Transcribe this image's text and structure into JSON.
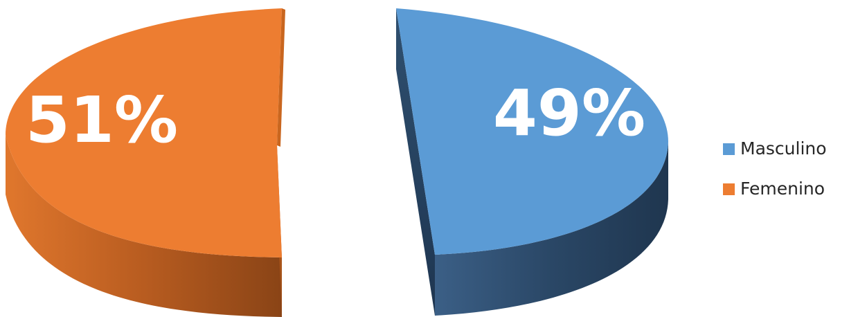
{
  "chart_data": {
    "type": "pie",
    "style": "3d-exploded",
    "categories": [
      "Masculino",
      "Femenino"
    ],
    "values": [
      49,
      51
    ],
    "labels": [
      "49%",
      "51%"
    ],
    "colors": [
      "#5B9BD5",
      "#ED7D31"
    ],
    "side_colors": [
      "#2C4A6B",
      "#B55A1E"
    ],
    "legend_position": "right"
  },
  "legend": {
    "items": [
      {
        "label": "Masculino",
        "color": "#5B9BD5"
      },
      {
        "label": "Femenino",
        "color": "#ED7D31"
      }
    ]
  }
}
